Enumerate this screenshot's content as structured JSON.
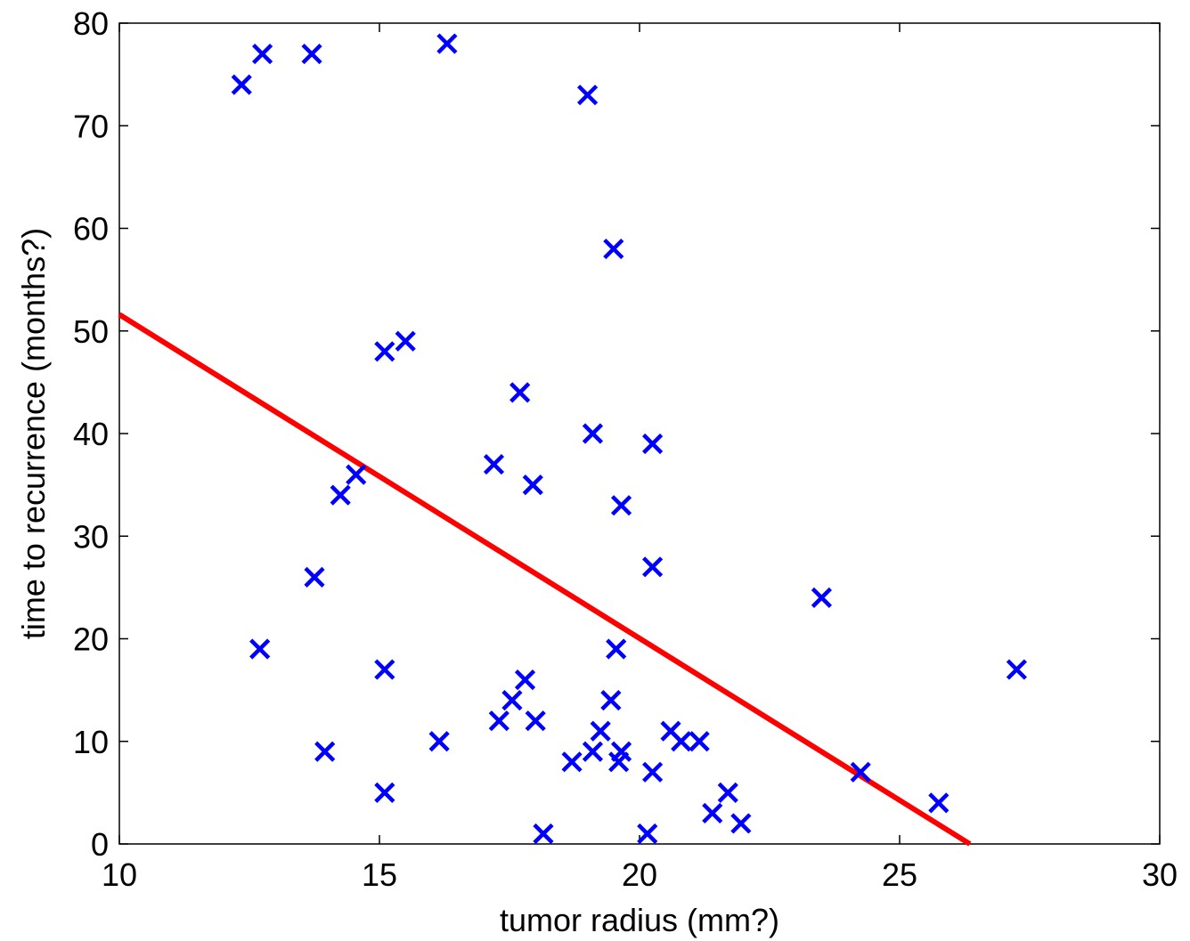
{
  "chart_data": {
    "type": "scatter",
    "xlabel": "tumor radius (mm?)",
    "ylabel": "time to recurrence (months?)",
    "xlim": [
      10,
      30
    ],
    "ylim": [
      0,
      80
    ],
    "xticks": [
      10,
      15,
      20,
      25,
      30
    ],
    "yticks": [
      0,
      10,
      20,
      30,
      40,
      50,
      60,
      70,
      80
    ],
    "xtick_labels": [
      "10",
      "15",
      "20",
      "25",
      "30"
    ],
    "ytick_labels": [
      "0",
      "10",
      "20",
      "30",
      "40",
      "50",
      "60",
      "70",
      "80"
    ],
    "grid": false,
    "points": [
      {
        "x": 12.35,
        "y": 74
      },
      {
        "x": 12.75,
        "y": 77
      },
      {
        "x": 13.7,
        "y": 77
      },
      {
        "x": 16.3,
        "y": 78
      },
      {
        "x": 19.0,
        "y": 73
      },
      {
        "x": 19.5,
        "y": 58
      },
      {
        "x": 15.1,
        "y": 48
      },
      {
        "x": 15.5,
        "y": 49
      },
      {
        "x": 17.7,
        "y": 44
      },
      {
        "x": 19.1,
        "y": 40
      },
      {
        "x": 20.25,
        "y": 39
      },
      {
        "x": 17.2,
        "y": 37
      },
      {
        "x": 14.55,
        "y": 36
      },
      {
        "x": 14.25,
        "y": 34
      },
      {
        "x": 17.95,
        "y": 35
      },
      {
        "x": 19.65,
        "y": 33
      },
      {
        "x": 20.25,
        "y": 27
      },
      {
        "x": 13.75,
        "y": 26
      },
      {
        "x": 23.5,
        "y": 24
      },
      {
        "x": 12.7,
        "y": 19
      },
      {
        "x": 19.55,
        "y": 19
      },
      {
        "x": 15.1,
        "y": 17
      },
      {
        "x": 27.25,
        "y": 17
      },
      {
        "x": 17.8,
        "y": 16
      },
      {
        "x": 17.55,
        "y": 14
      },
      {
        "x": 19.45,
        "y": 14
      },
      {
        "x": 17.3,
        "y": 12
      },
      {
        "x": 18.0,
        "y": 12
      },
      {
        "x": 19.25,
        "y": 11
      },
      {
        "x": 20.6,
        "y": 11
      },
      {
        "x": 16.15,
        "y": 10
      },
      {
        "x": 20.8,
        "y": 10
      },
      {
        "x": 21.15,
        "y": 10
      },
      {
        "x": 13.95,
        "y": 9
      },
      {
        "x": 19.1,
        "y": 9
      },
      {
        "x": 19.65,
        "y": 9
      },
      {
        "x": 18.7,
        "y": 8
      },
      {
        "x": 19.6,
        "y": 8
      },
      {
        "x": 20.25,
        "y": 7
      },
      {
        "x": 24.25,
        "y": 7
      },
      {
        "x": 15.1,
        "y": 5
      },
      {
        "x": 21.7,
        "y": 5
      },
      {
        "x": 25.75,
        "y": 4
      },
      {
        "x": 21.4,
        "y": 3
      },
      {
        "x": 21.95,
        "y": 2
      },
      {
        "x": 18.15,
        "y": 1
      },
      {
        "x": 20.15,
        "y": 1
      }
    ],
    "fit_line": {
      "x": [
        10,
        26.35
      ],
      "y": [
        51.6,
        0
      ]
    },
    "colors": {
      "points": "#0000ff",
      "fit_line": "#ff0000",
      "axes": "#000000"
    }
  }
}
